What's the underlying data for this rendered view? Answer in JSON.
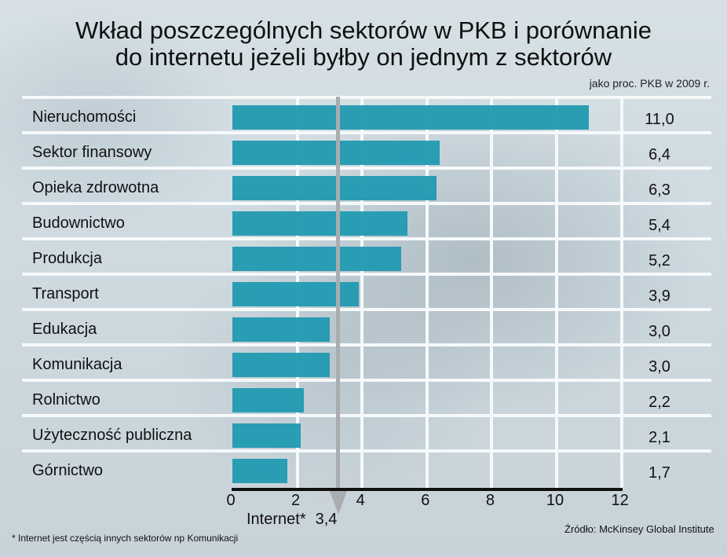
{
  "header": {
    "title_line1": "Wkład poszczególnych sektorów w PKB i porównanie",
    "title_line2": "do internetu jeżeli byłby on jednym z sektorów",
    "subtitle": "jako proc. PKB w 2009 r."
  },
  "colors": {
    "bar": "#249bb2",
    "grid": "#f6f9fa",
    "marker": "#a9adb0"
  },
  "rows": [
    {
      "label": "Nieruchomości",
      "value": 11.0,
      "display": "11,0"
    },
    {
      "label": "Sektor finansowy",
      "value": 6.4,
      "display": "6,4"
    },
    {
      "label": "Opieka zdrowotna",
      "value": 6.3,
      "display": "6,3"
    },
    {
      "label": "Budownictwo",
      "value": 5.4,
      "display": "5,4"
    },
    {
      "label": "Produkcja",
      "value": 5.2,
      "display": "5,2"
    },
    {
      "label": "Transport",
      "value": 3.9,
      "display": "3,9"
    },
    {
      "label": "Edukacja",
      "value": 3.0,
      "display": "3,0"
    },
    {
      "label": "Komunikacja",
      "value": 3.0,
      "display": "3,0"
    },
    {
      "label": "Rolnictwo",
      "value": 2.2,
      "display": "2,2"
    },
    {
      "label": "Użyteczność publiczna",
      "value": 2.1,
      "display": "2,1"
    },
    {
      "label": "Górnictwo",
      "value": 1.7,
      "display": "1,7"
    }
  ],
  "axis": {
    "ticks": [
      "0",
      "2",
      "4",
      "6",
      "8",
      "10",
      "12"
    ]
  },
  "internet_marker": {
    "label": "Internet*",
    "value_display": "3,4",
    "value": 3.4
  },
  "footnote": "* Internet jest częścią innych sektorów np Komunikacji",
  "source": "Źródło: McKinsey Global Institute",
  "chart_data": {
    "type": "bar",
    "orientation": "horizontal",
    "title": "Wkład poszczególnych sektorów w PKB i porównanie do internetu jeżeli byłby on jednym z sektorów",
    "subtitle": "jako proc. PKB w 2009 r.",
    "categories": [
      "Nieruchomości",
      "Sektor finansowy",
      "Opieka zdrowotna",
      "Budownictwo",
      "Produkcja",
      "Transport",
      "Edukacja",
      "Komunikacja",
      "Rolnictwo",
      "Użyteczność publiczna",
      "Górnictwo"
    ],
    "values": [
      11.0,
      6.4,
      6.3,
      5.4,
      5.2,
      3.9,
      3.0,
      3.0,
      2.2,
      2.1,
      1.7
    ],
    "xlabel": "",
    "ylabel": "",
    "xlim": [
      0,
      12
    ],
    "xticks": [
      0,
      2,
      4,
      6,
      8,
      10,
      12
    ],
    "grid": true,
    "legend": null,
    "annotations": [
      {
        "type": "reference_line",
        "x": 3.4,
        "label": "Internet* 3,4"
      },
      {
        "type": "footnote",
        "text": "* Internet jest częścią innych sektorów np Komunikacji"
      },
      {
        "type": "source",
        "text": "Źródło: McKinsey Global Institute"
      }
    ]
  }
}
